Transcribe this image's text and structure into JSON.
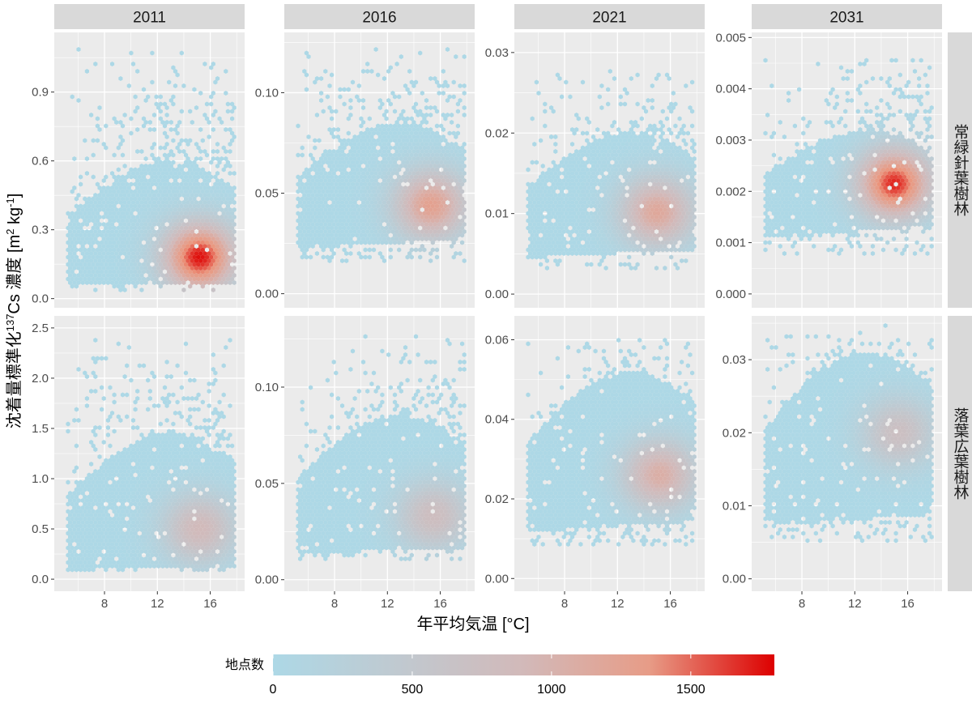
{
  "chart_data": {
    "type": "heatmap",
    "subtype": "faceted hexbin density",
    "x_label": "年平均気温 [°C]",
    "y_label_parts": {
      "pre": "沈着量標準化",
      "iso_mass": "137",
      "mid": "Cs 濃度 [m",
      "sup_m": "2",
      "unit_kg": " kg",
      "sup_kg": "-1",
      "close": "]"
    },
    "x_ticks": [
      8,
      12,
      16
    ],
    "x_ticks_text": [
      "8",
      "12",
      "16"
    ],
    "xlim": [
      4.2,
      18.6
    ],
    "columns": [
      "2011",
      "2016",
      "2021",
      "2031"
    ],
    "rows": [
      "常緑針葉樹林",
      "落葉広葉樹林"
    ],
    "panels": [
      {
        "row": 0,
        "col": 0,
        "ylim": [
          -0.04,
          1.16
        ],
        "y_ticks": [
          0,
          0.3,
          0.6,
          0.9
        ],
        "y_ticks_text": [
          "0.0",
          "0.3",
          "0.6",
          "0.9"
        ],
        "peak_x": 15.2,
        "peak_y": 0.18,
        "peak_density": 1800,
        "core_upper_y": 0.6,
        "core_lower_y": 0.06,
        "tail_top_y": 1.12
      },
      {
        "row": 0,
        "col": 1,
        "ylim": [
          -0.007,
          0.13
        ],
        "y_ticks": [
          0,
          0.05,
          0.1
        ],
        "y_ticks_text": [
          "0.00",
          "0.05",
          "0.10"
        ],
        "peak_x": 15.3,
        "peak_y": 0.044,
        "peak_density": 1300,
        "core_upper_y": 0.085,
        "core_lower_y": 0.025,
        "tail_top_y": 0.125
      },
      {
        "row": 0,
        "col": 2,
        "ylim": [
          -0.0017,
          0.0325
        ],
        "y_ticks": [
          0,
          0.01,
          0.02,
          0.03
        ],
        "y_ticks_text": [
          "0.00",
          "0.01",
          "0.02",
          "0.03"
        ],
        "peak_x": 15.0,
        "peak_y": 0.0102,
        "peak_density": 1200,
        "core_upper_y": 0.02,
        "core_lower_y": 0.005,
        "tail_top_y": 0.029
      },
      {
        "row": 0,
        "col": 3,
        "ylim": [
          -0.00027,
          0.0051
        ],
        "y_ticks": [
          0,
          0.001,
          0.002,
          0.003,
          0.004,
          0.005
        ],
        "y_ticks_text": [
          "0.000",
          "0.001",
          "0.002",
          "0.003",
          "0.004",
          "0.005"
        ],
        "peak_x": 15.0,
        "peak_y": 0.00215,
        "peak_density": 1750,
        "core_upper_y": 0.0032,
        "core_lower_y": 0.0012,
        "tail_top_y": 0.0048
      },
      {
        "row": 1,
        "col": 0,
        "ylim": [
          -0.12,
          2.62
        ],
        "y_ticks": [
          0,
          0.5,
          1,
          1.5,
          2,
          2.5
        ],
        "y_ticks_text": [
          "0.0",
          "0.5",
          "1.0",
          "1.5",
          "2.0",
          "2.5"
        ],
        "peak_x": 15.2,
        "peak_y": 0.5,
        "peak_density": 900,
        "core_upper_y": 1.45,
        "core_lower_y": 0.1,
        "tail_top_y": 2.45
      },
      {
        "row": 1,
        "col": 1,
        "ylim": [
          -0.006,
          0.137
        ],
        "y_ticks": [
          0,
          0.05,
          0.1
        ],
        "y_ticks_text": [
          "0.00",
          "0.05",
          "0.10"
        ],
        "peak_x": 15.5,
        "peak_y": 0.033,
        "peak_density": 800,
        "core_upper_y": 0.085,
        "core_lower_y": 0.015,
        "tail_top_y": 0.13
      },
      {
        "row": 1,
        "col": 2,
        "ylim": [
          -0.0032,
          0.066
        ],
        "y_ticks": [
          0,
          0.02,
          0.04,
          0.06
        ],
        "y_ticks_text": [
          "0.00",
          "0.02",
          "0.04",
          "0.06"
        ],
        "peak_x": 15.2,
        "peak_y": 0.026,
        "peak_density": 1100,
        "core_upper_y": 0.052,
        "core_lower_y": 0.013,
        "tail_top_y": 0.062
      },
      {
        "row": 1,
        "col": 3,
        "ylim": [
          -0.0017,
          0.036
        ],
        "y_ticks": [
          0,
          0.01,
          0.02,
          0.03
        ],
        "y_ticks_text": [
          "0.00",
          "0.01",
          "0.02",
          "0.03"
        ],
        "peak_x": 15.3,
        "peak_y": 0.02,
        "peak_density": 750,
        "core_upper_y": 0.031,
        "core_lower_y": 0.008,
        "tail_top_y": 0.035
      }
    ],
    "legend": {
      "title": "地点数",
      "min": 0,
      "max": 1800,
      "ticks": [
        0,
        500,
        1000,
        1500
      ],
      "ticks_text": [
        "0",
        "500",
        "1000",
        "1500"
      ],
      "color_low": "#add8e6",
      "color_high": "#dd0000"
    },
    "panel_bg": "#ebebeb",
    "strip_bg": "#d9d9d9",
    "grid_color": "#ffffff"
  }
}
